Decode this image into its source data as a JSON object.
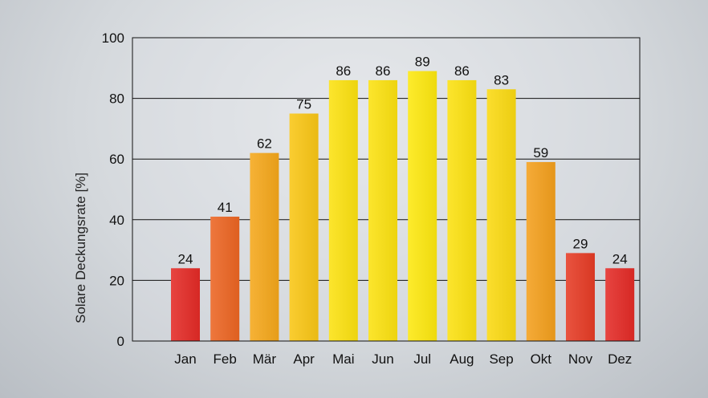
{
  "chart_data": {
    "type": "bar",
    "title": "",
    "xlabel": "",
    "ylabel": "Solare Deckungsrate [%]",
    "ylim": [
      0,
      100
    ],
    "yticks": [
      0,
      20,
      40,
      60,
      80,
      100
    ],
    "grid": true,
    "categories": [
      "Jan",
      "Feb",
      "Mär",
      "Apr",
      "Mai",
      "Jun",
      "Jul",
      "Aug",
      "Sep",
      "Okt",
      "Nov",
      "Dez"
    ],
    "values": [
      24,
      41,
      62,
      75,
      86,
      86,
      89,
      86,
      83,
      59,
      29,
      24
    ],
    "value_labels": [
      "24",
      "41",
      "62",
      "75",
      "86",
      "86",
      "89",
      "86",
      "83",
      "59",
      "29",
      "24"
    ],
    "colors": {
      "low": "#e42b26",
      "mid": "#f39a1e",
      "high": "#fde80f",
      "axis": "#111111",
      "plot_bg": "#d9dde1"
    }
  }
}
